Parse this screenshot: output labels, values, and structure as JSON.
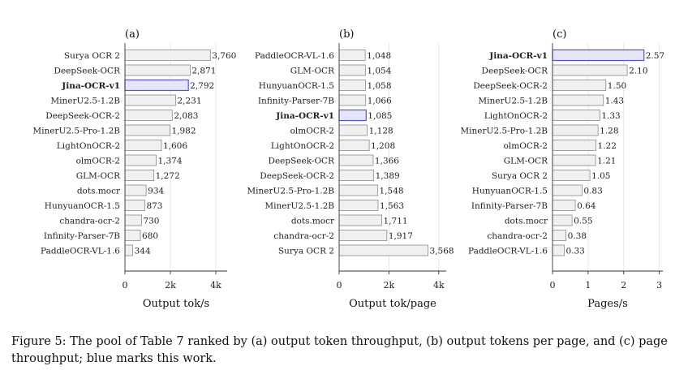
{
  "figure": {
    "caption": "Figure 5: The pool of Table 7 ranked by (a) output token throughput, (b) output tokens per page, and (c) page throughput; blue marks this work."
  },
  "colors": {
    "bar_fill": "#f0f0f0",
    "bar_stroke": "#8a8a8a",
    "highlight_fill": "#e6e6fb",
    "highlight_stroke": "#5555cc"
  },
  "chart_data": [
    {
      "type": "bar",
      "orientation": "horizontal",
      "panel_label": "(a)",
      "xlabel": "Output tok/s",
      "xlim": [
        0,
        4500
      ],
      "xticks": [
        0,
        2000,
        4000
      ],
      "xtick_labels": [
        "0",
        "2k",
        "4k"
      ],
      "grid": true,
      "highlight": "Jina-OCR-v1",
      "categories": [
        "Surya OCR 2",
        "DeepSeek-OCR",
        "Jina-OCR-v1",
        "MinerU2.5-1.2B",
        "DeepSeek-OCR-2",
        "MinerU2.5-Pro-1.2B",
        "LightOnOCR-2",
        "olmOCR-2",
        "GLM-OCR",
        "dots.mocr",
        "HunyuanOCR-1.5",
        "chandra-ocr-2",
        "Infinity-Parser-7B",
        "PaddleOCR-VL-1.6"
      ],
      "values": [
        3760,
        2871,
        2792,
        2231,
        2083,
        1982,
        1606,
        1374,
        1272,
        934,
        873,
        730,
        680,
        344
      ],
      "value_labels": [
        "3,760",
        "2,871",
        "2,792",
        "2,231",
        "2,083",
        "1,982",
        "1,606",
        "1,374",
        "1,272",
        "934",
        "873",
        "730",
        "680",
        "344"
      ]
    },
    {
      "type": "bar",
      "orientation": "horizontal",
      "panel_label": "(b)",
      "xlabel": "Output tok/page",
      "xlim": [
        0,
        4300
      ],
      "xticks": [
        0,
        2000,
        4000
      ],
      "xtick_labels": [
        "0",
        "2k",
        "4k"
      ],
      "grid": true,
      "highlight": "Jina-OCR-v1",
      "categories": [
        "PaddleOCR-VL-1.6",
        "GLM-OCR",
        "HunyuanOCR-1.5",
        "Infinity-Parser-7B",
        "Jina-OCR-v1",
        "olmOCR-2",
        "LightOnOCR-2",
        "DeepSeek-OCR",
        "DeepSeek-OCR-2",
        "MinerU2.5-Pro-1.2B",
        "MinerU2.5-1.2B",
        "dots.mocr",
        "chandra-ocr-2",
        "Surya OCR 2"
      ],
      "values": [
        1048,
        1054,
        1058,
        1066,
        1085,
        1128,
        1208,
        1366,
        1389,
        1548,
        1563,
        1711,
        1917,
        3568
      ],
      "value_labels": [
        "1,048",
        "1,054",
        "1,058",
        "1,066",
        "1,085",
        "1,128",
        "1,208",
        "1,366",
        "1,389",
        "1,548",
        "1,563",
        "1,711",
        "1,917",
        "3,568"
      ]
    },
    {
      "type": "bar",
      "orientation": "horizontal",
      "panel_label": "(c)",
      "xlabel": "Pages/s",
      "xlim": [
        0,
        3.1
      ],
      "xticks": [
        0,
        1,
        2,
        3
      ],
      "xtick_labels": [
        "0",
        "1",
        "2",
        "3"
      ],
      "grid": true,
      "highlight": "Jina-OCR-v1",
      "categories": [
        "Jina-OCR-v1",
        "DeepSeek-OCR",
        "DeepSeek-OCR-2",
        "MinerU2.5-1.2B",
        "LightOnOCR-2",
        "MinerU2.5-Pro-1.2B",
        "olmOCR-2",
        "GLM-OCR",
        "Surya OCR 2",
        "HunyuanOCR-1.5",
        "Infinity-Parser-7B",
        "dots.mocr",
        "chandra-ocr-2",
        "PaddleOCR-VL-1.6"
      ],
      "values": [
        2.57,
        2.1,
        1.5,
        1.43,
        1.33,
        1.28,
        1.22,
        1.21,
        1.05,
        0.83,
        0.64,
        0.55,
        0.38,
        0.33
      ],
      "value_labels": [
        "2.57",
        "2.10",
        "1.50",
        "1.43",
        "1.33",
        "1.28",
        "1.22",
        "1.21",
        "1.05",
        "0.83",
        "0.64",
        "0.55",
        "0.38",
        "0.33"
      ]
    }
  ]
}
